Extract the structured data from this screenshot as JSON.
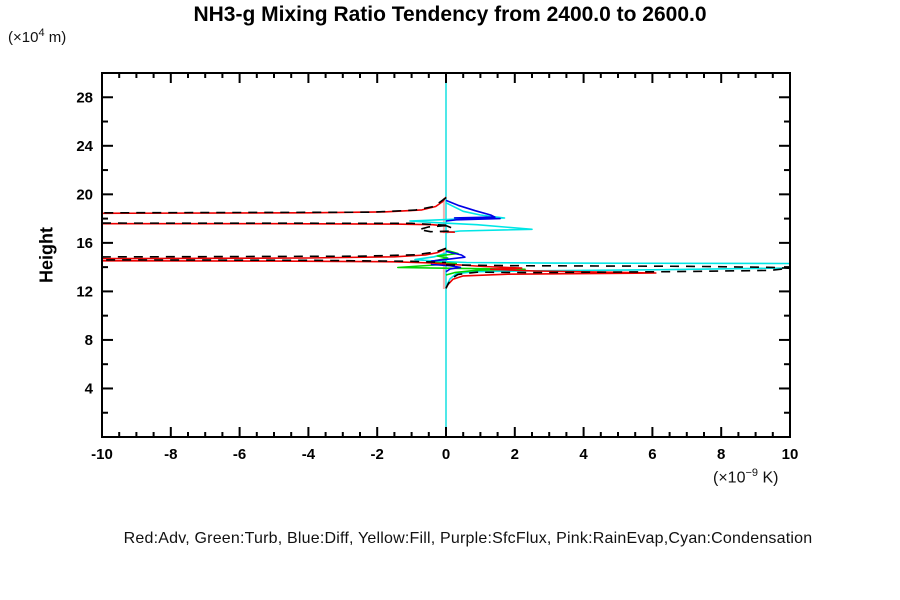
{
  "page": {
    "title": "NH3-g Mixing Ratio Tendency from 2400.0 to 2600.0"
  },
  "y_axis_title": "Height",
  "y_unit": {
    "prefix": "(×10",
    "sup": "4",
    "suffix": " m)"
  },
  "x_unit": {
    "prefix": "(×10",
    "sup": "−9",
    "suffix": " K)"
  },
  "legend": {
    "text": "Red:Adv, Green:Turb, Blue:Diff, Yellow:Fill, Purple:SfcFlux, Pink:RainEvap,Cyan:Condensation",
    "items": [
      {
        "color_word": "Red",
        "term": "Adv",
        "hex": "#ee0000"
      },
      {
        "color_word": "Green",
        "term": "Turb",
        "hex": "#00d400"
      },
      {
        "color_word": "Blue",
        "term": "Diff",
        "hex": "#0000e6"
      },
      {
        "color_word": "Yellow",
        "term": "Fill",
        "hex": "#dddd00"
      },
      {
        "color_word": "Purple",
        "term": "SfcFlux",
        "hex": "#aa00aa"
      },
      {
        "color_word": "Pink",
        "term": "RainEvap",
        "hex": "#f4b0b0"
      },
      {
        "color_word": "Cyan",
        "term": "Condensation",
        "hex": "#00e6e6"
      }
    ]
  },
  "chart_data": {
    "type": "line",
    "title": "NH3-g Mixing Ratio Tendency from 2400.0 to 2600.0",
    "xlabel": "(x10^-9 K)",
    "ylabel": "Height (x10^4 m)",
    "x_range": [
      -10,
      10
    ],
    "y_range": [
      0,
      30
    ],
    "x_minor_step": 0.5,
    "x_major_step": 2,
    "y_minor_step": 2,
    "y_major_step": 4,
    "x_ticks": [
      {
        "v": -10,
        "label": "-10"
      },
      {
        "v": -8,
        "label": "-8"
      },
      {
        "v": -6,
        "label": "-6"
      },
      {
        "v": -4,
        "label": "-4"
      },
      {
        "v": -2,
        "label": "-2"
      },
      {
        "v": 0,
        "label": "0"
      },
      {
        "v": 2,
        "label": "2"
      },
      {
        "v": 4,
        "label": "4"
      },
      {
        "v": 6,
        "label": "6"
      },
      {
        "v": 8,
        "label": "8"
      },
      {
        "v": 10,
        "label": "10"
      }
    ],
    "y_ticks": [
      {
        "v": 4,
        "label": "4"
      },
      {
        "v": 8,
        "label": "8"
      },
      {
        "v": 12,
        "label": "12"
      },
      {
        "v": 16,
        "label": "16"
      },
      {
        "v": 20,
        "label": "20"
      },
      {
        "v": 24,
        "label": "24"
      },
      {
        "v": 28,
        "label": "28"
      }
    ],
    "zero_line": {
      "x": 0,
      "color": "#4fe8e8",
      "width": 2
    },
    "grid": false,
    "legend_position": "bottom-text-line",
    "series": [
      {
        "name": "rain-evap",
        "legend": "Pink:RainEvap",
        "color": "#f4b0b0",
        "width": 2,
        "dash": "",
        "paths": [
          [
            [
              -0.06,
              19.7
            ],
            [
              -0.06,
              16.8
            ]
          ],
          [
            [
              -0.06,
              15.3
            ],
            [
              -0.06,
              12.2
            ]
          ]
        ]
      },
      {
        "name": "condensation",
        "legend": "Cyan:Condensation",
        "color": "#00e6e6",
        "width": 1.6,
        "dash": "",
        "paths": [
          [
            [
              0,
              19.3
            ],
            [
              0.5,
              18.6
            ],
            [
              1.0,
              18.3
            ],
            [
              1.7,
              18.05
            ],
            [
              0.25,
              17.95
            ],
            [
              -1.05,
              17.8
            ],
            [
              -0.2,
              17.65
            ],
            [
              0.9,
              17.5
            ],
            [
              2.5,
              17.12
            ],
            [
              0.4,
              16.98
            ],
            [
              0,
              16.85
            ]
          ],
          [
            [
              0,
              15.15
            ],
            [
              -0.35,
              14.85
            ],
            [
              -0.9,
              14.62
            ],
            [
              -0.25,
              14.48
            ],
            [
              0.6,
              14.38
            ],
            [
              3,
              14.33
            ],
            [
              10,
              14.3
            ],
            [
              10,
              13.93
            ],
            [
              6,
              13.78
            ],
            [
              2.5,
              13.7
            ],
            [
              0.8,
              13.62
            ],
            [
              0.3,
              13.45
            ],
            [
              0.12,
              13.05
            ],
            [
              0.04,
              12.6
            ],
            [
              0,
              12.3
            ]
          ]
        ]
      },
      {
        "name": "turb",
        "legend": "Green:Turb",
        "color": "#00d400",
        "width": 1.6,
        "dash": "",
        "paths": [
          [
            [
              0,
              15.4
            ],
            [
              0.35,
              15.12
            ],
            [
              -0.25,
              14.92
            ],
            [
              0.05,
              14.75
            ],
            [
              -0.5,
              14.42
            ],
            [
              0.3,
              14.3
            ],
            [
              -1.4,
              13.97
            ],
            [
              0.2,
              13.9
            ],
            [
              2.3,
              13.82
            ],
            [
              0.9,
              13.75
            ],
            [
              0.25,
              13.55
            ],
            [
              0,
              13.35
            ]
          ]
        ]
      },
      {
        "name": "diff",
        "legend": "Blue:Diff",
        "color": "#0000e6",
        "width": 1.6,
        "dash": "",
        "paths": [
          [
            [
              0,
              19.5
            ],
            [
              0.35,
              19.1
            ],
            [
              0.85,
              18.65
            ],
            [
              1.3,
              18.3
            ],
            [
              1.42,
              18.12
            ],
            [
              0.25,
              18.06
            ],
            [
              1.57,
              18.0
            ],
            [
              0.3,
              17.9
            ],
            [
              0,
              17.8
            ]
          ],
          [
            [
              0,
              15.3
            ],
            [
              0.45,
              15.0
            ],
            [
              0.55,
              14.82
            ],
            [
              0.1,
              14.66
            ],
            [
              -0.42,
              14.5
            ],
            [
              -0.42,
              14.22
            ],
            [
              0.12,
              14.12
            ],
            [
              0.42,
              13.98
            ],
            [
              0.12,
              13.85
            ],
            [
              0,
              13.62
            ]
          ]
        ]
      },
      {
        "name": "adv",
        "legend": "Red:Adv",
        "color": "#ee0000",
        "width": 1.6,
        "dash": "",
        "paths": [
          [
            [
              0,
              19.78
            ],
            [
              -0.1,
              19.4
            ],
            [
              -0.3,
              19.0
            ],
            [
              -0.7,
              18.72
            ],
            [
              -1.8,
              18.55
            ],
            [
              -4,
              18.48
            ],
            [
              -10,
              18.44
            ]
          ],
          [
            [
              -10,
              17.58
            ],
            [
              -5,
              17.58
            ],
            [
              -1.5,
              17.55
            ],
            [
              -0.4,
              17.5
            ],
            [
              0,
              17.4
            ]
          ],
          [
            [
              -0.17,
              16.92
            ],
            [
              0.26,
              16.88
            ]
          ],
          [
            [
              0,
              15.5
            ],
            [
              -0.25,
              15.2
            ],
            [
              -0.6,
              15.0
            ],
            [
              -1.5,
              14.85
            ],
            [
              -4,
              14.75
            ],
            [
              -10,
              14.7
            ],
            [
              -10,
              14.52
            ],
            [
              -5,
              14.5
            ],
            [
              -1.5,
              14.44
            ],
            [
              -0.4,
              14.34
            ],
            [
              0.2,
              14.22
            ],
            [
              1.1,
              14.05
            ],
            [
              2.2,
              13.92
            ],
            [
              1.3,
              13.82
            ],
            [
              2.6,
              13.68
            ],
            [
              6.1,
              13.52
            ],
            [
              1.8,
              13.42
            ],
            [
              0.5,
              13.28
            ],
            [
              0.2,
              13.0
            ],
            [
              0.07,
              12.6
            ],
            [
              0,
              12.3
            ]
          ]
        ]
      },
      {
        "name": "black-dashed-total",
        "legend": "",
        "color": "#000000",
        "width": 1.6,
        "dash": "9 7",
        "paths": [
          [
            [
              0,
              19.72
            ],
            [
              -0.35,
              19.0
            ],
            [
              -0.9,
              18.7
            ],
            [
              -2.2,
              18.53
            ],
            [
              -10,
              18.48
            ]
          ],
          [
            [
              -10,
              17.63
            ],
            [
              -1,
              17.61
            ],
            [
              0,
              17.46
            ]
          ],
          [
            [
              0,
              17.42
            ],
            [
              -0.5,
              17.32
            ],
            [
              -0.78,
              17.1
            ],
            [
              -0.45,
              16.92
            ],
            [
              0.1,
              16.97
            ],
            [
              0.2,
              17.2
            ],
            [
              0,
              17.42
            ]
          ],
          [
            [
              0,
              15.55
            ],
            [
              -0.3,
              15.25
            ],
            [
              -0.9,
              15.02
            ],
            [
              -2.5,
              14.9
            ],
            [
              -10,
              14.84
            ],
            [
              -10,
              14.6
            ],
            [
              -4,
              14.56
            ],
            [
              -1,
              14.48
            ],
            [
              0,
              14.38
            ]
          ],
          [
            [
              0,
              14.18
            ],
            [
              2,
              14.12
            ],
            [
              7,
              14.07
            ],
            [
              9.5,
              13.98
            ],
            [
              10,
              13.9
            ],
            [
              9.4,
              13.73
            ],
            [
              6.5,
              13.62
            ],
            [
              2.5,
              13.55
            ],
            [
              0.9,
              13.58
            ],
            [
              0.35,
              13.4
            ],
            [
              0.15,
              13.05
            ],
            [
              0.05,
              12.55
            ],
            [
              0,
              12.25
            ]
          ]
        ]
      }
    ]
  }
}
